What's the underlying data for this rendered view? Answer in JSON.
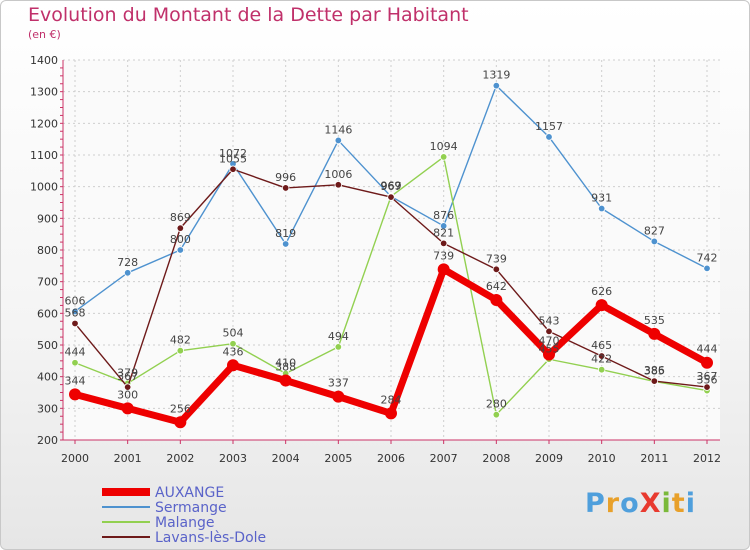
{
  "chart_data": {
    "type": "line",
    "title": "Evolution du Montant de la Dette par Habitant",
    "subtitle": "(en €)",
    "xlabel": "",
    "ylabel": "",
    "ylim": [
      200,
      1400
    ],
    "yticks": [
      200,
      300,
      400,
      500,
      600,
      700,
      800,
      900,
      1000,
      1100,
      1200,
      1300,
      1400
    ],
    "x": [
      "2000",
      "2001",
      "2002",
      "2003",
      "2004",
      "2005",
      "2006",
      "2007",
      "2008",
      "2009",
      "2010",
      "2011",
      "2012"
    ],
    "grid": true,
    "legend_position": "bottom-left",
    "series": [
      {
        "name": "Sermange",
        "color": "#4e92cf",
        "values": [
          606,
          728,
          800,
          1072,
          819,
          1146,
          969,
          876,
          1319,
          1157,
          931,
          827,
          742
        ]
      },
      {
        "name": "Malange",
        "color": "#92d050",
        "values": [
          444,
          379,
          482,
          504,
          410,
          494,
          969,
          1094,
          280,
          455,
          422,
          385,
          356
        ]
      },
      {
        "name": "Lavans-lès-Dole",
        "color": "#6e1a1a",
        "values": [
          568,
          367,
          869,
          1055,
          996,
          1006,
          967,
          821,
          739,
          543,
          465,
          386,
          367
        ]
      },
      {
        "name": "AUXANGE",
        "color": "#ee0000",
        "values": [
          344,
          300,
          256,
          436,
          388,
          337,
          284,
          739,
          642,
          470,
          626,
          535,
          444
        ]
      }
    ]
  },
  "logo": {
    "text": "ProXiti"
  }
}
